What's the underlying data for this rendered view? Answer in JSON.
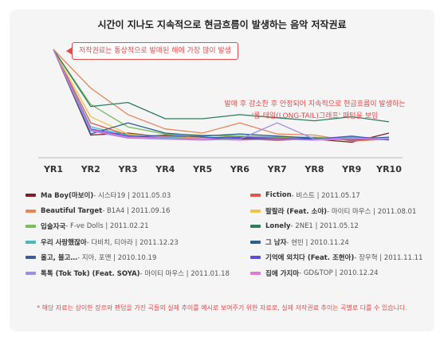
{
  "chart_data": {
    "type": "line",
    "title": "시간이 지나도 지속적으로 현금흐름이 발생하는 음악 저작권료",
    "categories": [
      "YR1",
      "YR2",
      "YR3",
      "YR4",
      "YR5",
      "YR6",
      "YR7",
      "YR8",
      "YR9",
      "YR10"
    ],
    "ylim": [
      0,
      100
    ],
    "grid": false,
    "legend_position": "bottom",
    "series": [
      {
        "name": "Ma Boy(마보이)",
        "meta": "- 시스타19 | 2011.05.03",
        "color": "#7a1f2b",
        "values": [
          100,
          16,
          18,
          14,
          13,
          12,
          11,
          12,
          9,
          18
        ]
      },
      {
        "name": "Fiction",
        "meta": "- 비스트 | 2011.05.17",
        "color": "#e0574f",
        "values": [
          100,
          28,
          16,
          15,
          13,
          15,
          12,
          13,
          14,
          13
        ]
      },
      {
        "name": "Beautiful Target",
        "meta": "- B1A4 | 2011.09.16",
        "color": "#e8855a",
        "values": [
          100,
          62,
          36,
          22,
          18,
          28,
          17,
          16,
          10,
          12
        ]
      },
      {
        "name": "랄랄라 (Feat. 소야)",
        "meta": "- 마이티 마우스 | 2011.08.01",
        "color": "#f1c24a",
        "values": [
          100,
          34,
          17,
          14,
          13,
          13,
          14,
          12,
          11,
          13
        ]
      },
      {
        "name": "입술자국",
        "meta": "- F-ve Dolls | 2011.02.21",
        "color": "#7dbb5f",
        "values": [
          100,
          46,
          24,
          17,
          16,
          15,
          14,
          14,
          12,
          12
        ]
      },
      {
        "name": "Lonely",
        "meta": "- 2NE1 | 2011.05.12",
        "color": "#2e7d5b",
        "values": [
          100,
          44,
          48,
          32,
          32,
          36,
          33,
          30,
          34,
          29
        ]
      },
      {
        "name": "우리 사랑했잖아",
        "meta": "- 다비치, 티아라 | 2011.12.23",
        "color": "#4ab8b8",
        "values": [
          100,
          24,
          16,
          14,
          12,
          13,
          12,
          11,
          14,
          12
        ]
      },
      {
        "name": "그 남자",
        "meta": "- 현빈 | 2010.11.24",
        "color": "#2a5f8f",
        "values": [
          100,
          17,
          28,
          18,
          15,
          17,
          15,
          13,
          12,
          14
        ]
      },
      {
        "name": "올고, 불고…",
        "meta": "- 지아, 포맨 | 2010.10.19",
        "color": "#3f5a9e",
        "values": [
          100,
          20,
          14,
          16,
          14,
          13,
          12,
          13,
          11,
          13
        ]
      },
      {
        "name": "기억에 외치다 (Feat. 조현아)",
        "meta": "- 장우혁 | 2011.11.11",
        "color": "#5b4fd6",
        "values": [
          100,
          22,
          15,
          13,
          12,
          14,
          13,
          12,
          15,
          11
        ]
      },
      {
        "name": "톡톡 (Tok Tok) (Feat. SOYA)",
        "meta": "- 마이티 마우스 | 2011.01.18",
        "color": "#9b8de8",
        "values": [
          100,
          20,
          13,
          12,
          11,
          12,
          28,
          12,
          13,
          12
        ]
      },
      {
        "name": "집에 가지마",
        "meta": "- GD&TOP | 2010.12.24",
        "color": "#e07ad6",
        "values": [
          100,
          21,
          14,
          13,
          12,
          11,
          12,
          11,
          12,
          13
        ]
      }
    ]
  },
  "callout": "저작권료는 통상적으로 발매된 해에 가장 많이 발생",
  "note": {
    "line1": "발매 후 감소한 후 안정되어 지속적으로 현금흐름이 발생하는",
    "line2": "'롱-테일(LONG-TAIL)그래프' 패턴을 보임"
  },
  "footnote": "* 해당 자료는 상이한 장르와 팬덤을 가진 곡들의 실제 추이를 예시로 보여주기 위한 자료로, 실제 저작권료 추이는 곡별로 다를 수 있습니다."
}
